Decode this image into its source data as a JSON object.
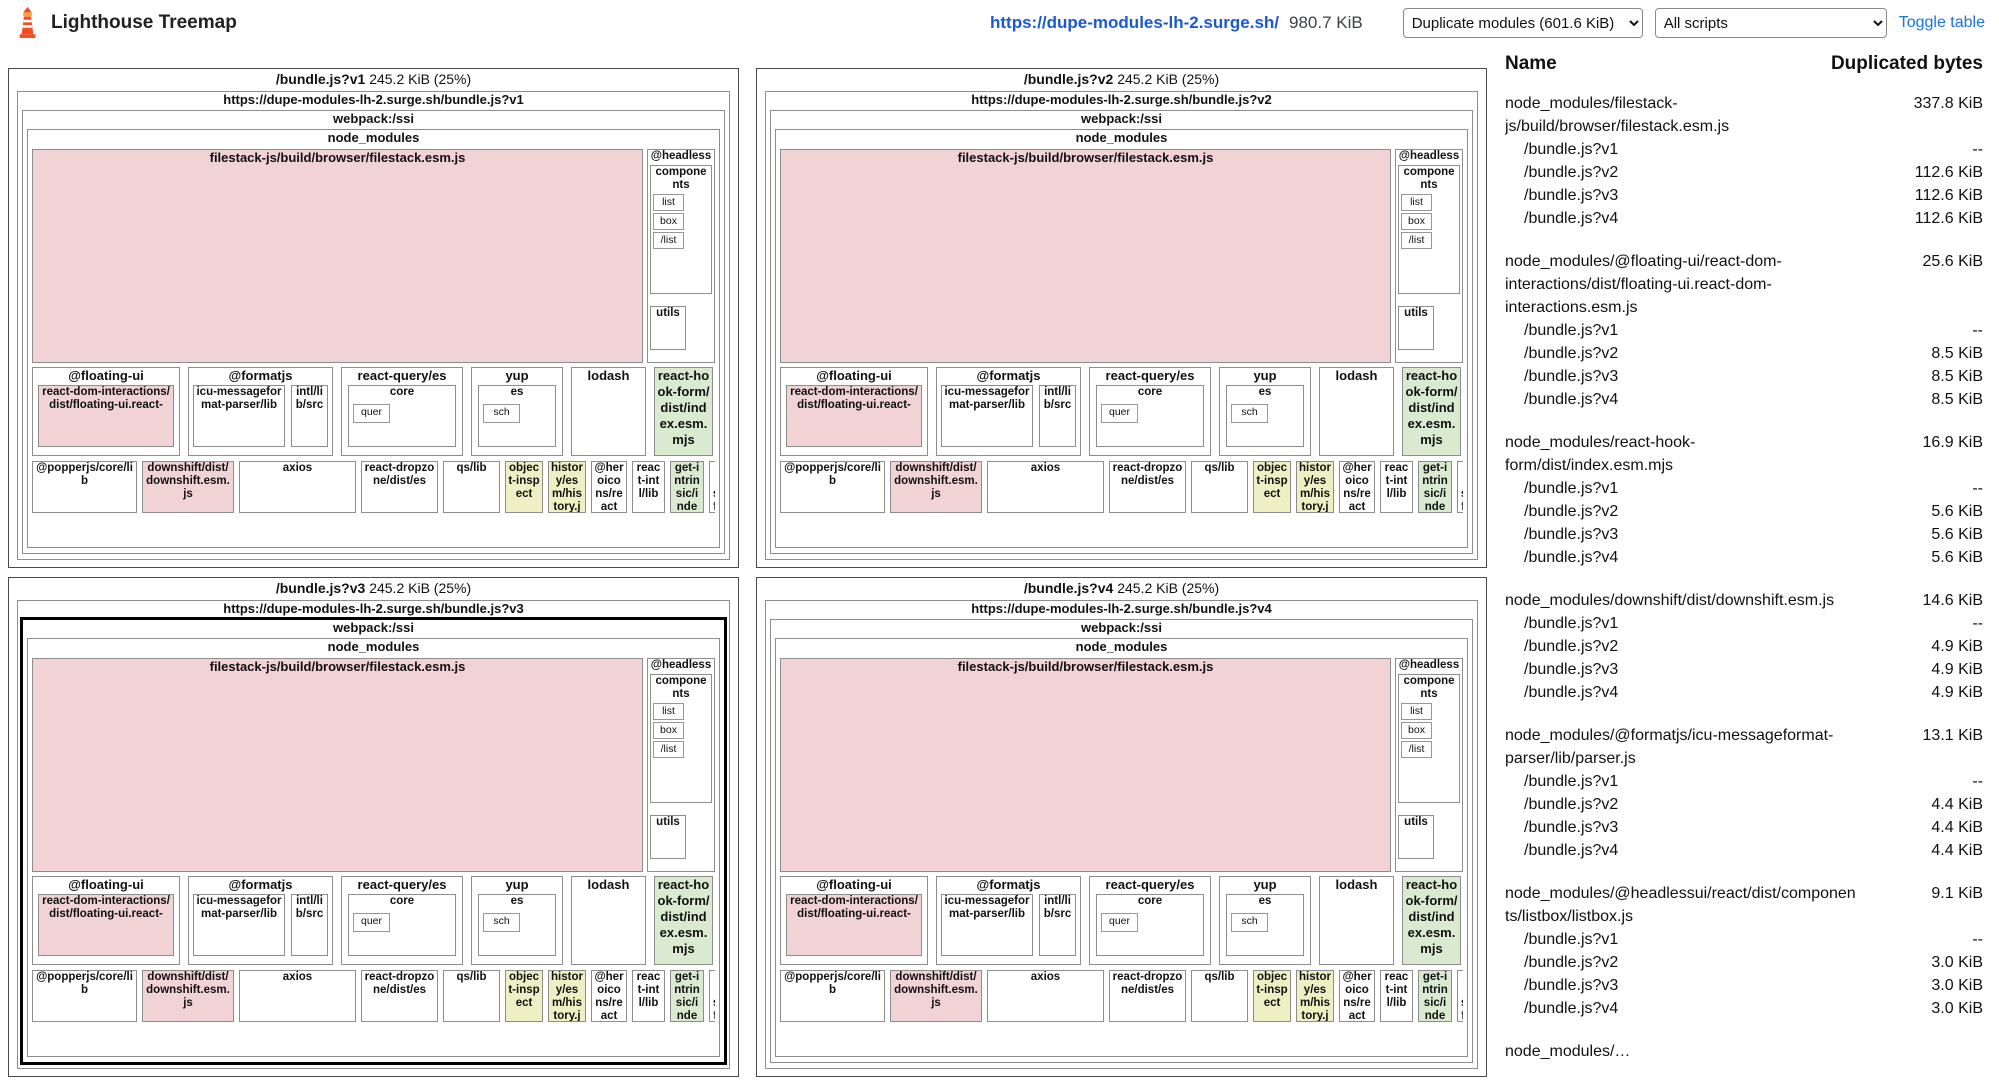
{
  "header": {
    "app_title": "Lighthouse Treemap",
    "url": "https://dupe-modules-lh-2.surge.sh/",
    "total_size": "980.7 KiB",
    "partition_select": "Duplicate modules (601.6 KiB)",
    "script_select": "All scripts",
    "toggle_table": "Toggle table"
  },
  "treemap": {
    "labels": {
      "webpack": "webpack:/ssi",
      "node_modules": "node_modules"
    },
    "quadrants": [
      {
        "title": "/bundle.js?v1",
        "size": "245.2 KiB (25%)",
        "url": "https://dupe-modules-lh-2.surge.sh/bundle.js?v1",
        "highlighted": false
      },
      {
        "title": "/bundle.js?v2",
        "size": "245.2 KiB (25%)",
        "url": "https://dupe-modules-lh-2.surge.sh/bundle.js?v2",
        "highlighted": false
      },
      {
        "title": "/bundle.js?v3",
        "size": "245.2 KiB (25%)",
        "url": "https://dupe-modules-lh-2.surge.sh/bundle.js?v3",
        "highlighted": true
      },
      {
        "title": "/bundle.js?v4",
        "size": "245.2 KiB (25%)",
        "url": "https://dupe-modules-lh-2.surge.sh/bundle.js?v4",
        "highlighted": false
      }
    ],
    "cells": {
      "filestack": "filestack-js/build/browser/filestack.esm.js",
      "headless": "@headless",
      "components": "components",
      "comp_items": [
        "list",
        "box",
        "/list"
      ],
      "utils": "utils",
      "floating": "@floating-ui",
      "floating_child": "react-dom-interactions/dist/floating-ui.react-",
      "formatjs": "@formatjs",
      "icu": "icu-messageformat-parser/lib",
      "intl": "intl/lib/src",
      "react_query": "react-query/es",
      "core": "core",
      "quer": "quer",
      "yup": "yup",
      "es": "es",
      "sch": "sch",
      "lodash": "lodash",
      "react_hook_form": "react-hook-form/dist/index.esm.mjs",
      "popperjs": "@popperjs/core/lib",
      "downshift": "downshift/dist/downshift.esm.js",
      "axios": "axios",
      "dropzone": "react-dropzone/dist/es",
      "qs": "qs/lib",
      "object_inspect": "object-inspect",
      "history": "history/esm/history.js",
      "heroicons": "@heroicons/react",
      "react_intl": "react-intl/lib",
      "get_intrinsic": "get-intrinsic/index.js",
      "intl_messageformat": "intl-messageformat"
    }
  },
  "table": {
    "name_header": "Name",
    "bytes_header": "Duplicated bytes",
    "groups": [
      {
        "name": "node_modules/filestack-js/build/browser/filestack.esm.js",
        "bytes": "337.8 KiB",
        "entries": [
          {
            "label": "/bundle.js?v1",
            "value": "--"
          },
          {
            "label": "/bundle.js?v2",
            "value": "112.6 KiB"
          },
          {
            "label": "/bundle.js?v3",
            "value": "112.6 KiB"
          },
          {
            "label": "/bundle.js?v4",
            "value": "112.6 KiB"
          }
        ]
      },
      {
        "name": "node_modules/@floating-ui/react-dom-interactions/dist/floating-ui.react-dom-interactions.esm.js",
        "bytes": "25.6 KiB",
        "entries": [
          {
            "label": "/bundle.js?v1",
            "value": "--"
          },
          {
            "label": "/bundle.js?v2",
            "value": "8.5 KiB"
          },
          {
            "label": "/bundle.js?v3",
            "value": "8.5 KiB"
          },
          {
            "label": "/bundle.js?v4",
            "value": "8.5 KiB"
          }
        ]
      },
      {
        "name": "node_modules/react-hook-form/dist/index.esm.mjs",
        "bytes": "16.9 KiB",
        "entries": [
          {
            "label": "/bundle.js?v1",
            "value": "--"
          },
          {
            "label": "/bundle.js?v2",
            "value": "5.6 KiB"
          },
          {
            "label": "/bundle.js?v3",
            "value": "5.6 KiB"
          },
          {
            "label": "/bundle.js?v4",
            "value": "5.6 KiB"
          }
        ]
      },
      {
        "name": "node_modules/downshift/dist/downshift.esm.js",
        "bytes": "14.6 KiB",
        "entries": [
          {
            "label": "/bundle.js?v1",
            "value": "--"
          },
          {
            "label": "/bundle.js?v2",
            "value": "4.9 KiB"
          },
          {
            "label": "/bundle.js?v3",
            "value": "4.9 KiB"
          },
          {
            "label": "/bundle.js?v4",
            "value": "4.9 KiB"
          }
        ]
      },
      {
        "name": "node_modules/@formatjs/icu-messageformat-parser/lib/parser.js",
        "bytes": "13.1 KiB",
        "entries": [
          {
            "label": "/bundle.js?v1",
            "value": "--"
          },
          {
            "label": "/bundle.js?v2",
            "value": "4.4 KiB"
          },
          {
            "label": "/bundle.js?v3",
            "value": "4.4 KiB"
          },
          {
            "label": "/bundle.js?v4",
            "value": "4.4 KiB"
          }
        ]
      },
      {
        "name": "node_modules/@headlessui/react/dist/components/listbox/listbox.js",
        "bytes": "9.1 KiB",
        "entries": [
          {
            "label": "/bundle.js?v1",
            "value": "--"
          },
          {
            "label": "/bundle.js?v2",
            "value": "3.0 KiB"
          },
          {
            "label": "/bundle.js?v3",
            "value": "3.0 KiB"
          },
          {
            "label": "/bundle.js?v4",
            "value": "3.0 KiB"
          }
        ]
      },
      {
        "name": "node_modules/…",
        "bytes": "",
        "entries": []
      }
    ]
  }
}
